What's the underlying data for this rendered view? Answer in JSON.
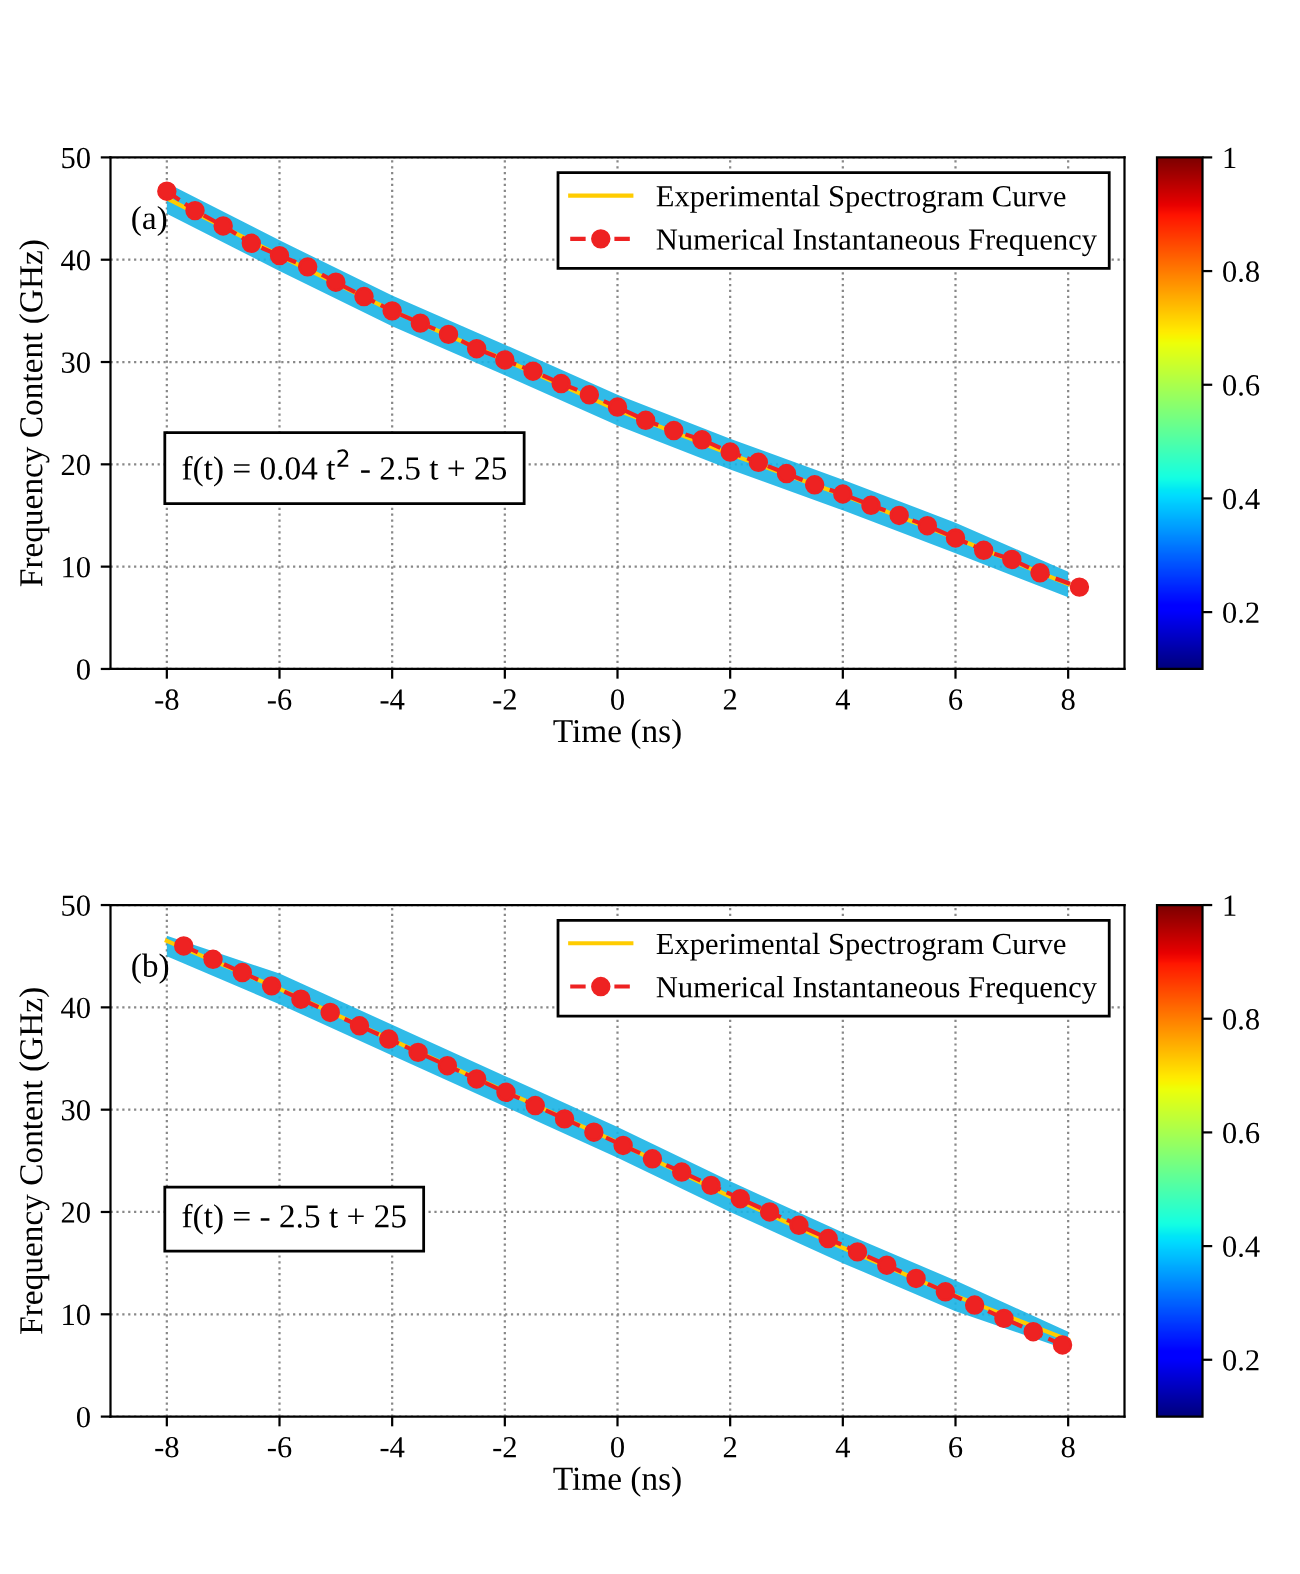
{
  "chart_data": [
    {
      "type": "line",
      "xlabel": "Time (ns)",
      "ylabel": "Frequency Content (GHz)",
      "xlim": [
        -9,
        9
      ],
      "xticks": [
        -8,
        -6,
        -4,
        -2,
        0,
        2,
        4,
        6,
        8
      ],
      "ylim": [
        0,
        50
      ],
      "yticks": [
        0,
        10,
        20,
        30,
        40,
        50
      ],
      "grid": true,
      "legend": "top right",
      "clim": [
        0.1,
        1
      ],
      "cticks": [
        0.2,
        0.4,
        0.6,
        0.8,
        1
      ],
      "annotations": [
        "(a)",
        "f(t) = 0.04 t$^{2}$ - 2.5 t + 25"
      ],
      "series": [
        {
          "name": "Experimental Spectrogram Curve",
          "color": "#ffcc00",
          "x": [
            -8,
            -6,
            -4,
            -2,
            0,
            2,
            4,
            6,
            8
          ],
          "values": [
            46,
            40.4,
            35,
            30.2,
            25.3,
            21,
            17,
            12.8,
            8.3
          ],
          "lower": [
            44.5,
            38.9,
            33.5,
            28.7,
            23.8,
            19.5,
            15.5,
            11.3,
            7
          ],
          "upper": [
            47.5,
            41.9,
            36.5,
            31.7,
            26.8,
            22.5,
            18.5,
            14.3,
            9.5
          ]
        },
        {
          "name": "Numerical Instantaneous Frequency",
          "color": "#ee2222",
          "marker": "circle",
          "line_style": "dashed",
          "x": [
            -8,
            -7.5,
            -7,
            -6.5,
            -6,
            -5.5,
            -5,
            -4.5,
            -4,
            -3.5,
            -3,
            -2.5,
            -2,
            -1.5,
            -1,
            -0.5,
            0,
            0.5,
            1,
            1.5,
            2,
            2.5,
            3,
            3.5,
            4,
            4.5,
            5,
            5.5,
            6,
            6.5,
            7,
            7.5,
            8.2
          ],
          "values": [
            46.7,
            44.8,
            43.3,
            41.6,
            40.4,
            39.3,
            37.8,
            36.4,
            35,
            33.8,
            32.7,
            31.3,
            30.2,
            29.1,
            27.9,
            26.8,
            25.6,
            24.3,
            23.3,
            22.4,
            21.2,
            20.2,
            19.1,
            18,
            17.1,
            16,
            15,
            14,
            12.8,
            11.6,
            10.7,
            9.4,
            8
          ]
        }
      ]
    },
    {
      "type": "line",
      "xlabel": "Time (ns)",
      "ylabel": "Frequency Content (GHz)",
      "xlim": [
        -9,
        9
      ],
      "xticks": [
        -8,
        -6,
        -4,
        -2,
        0,
        2,
        4,
        6,
        8
      ],
      "ylim": [
        0,
        50
      ],
      "yticks": [
        0,
        10,
        20,
        30,
        40,
        50
      ],
      "grid": true,
      "legend": "top right",
      "clim": [
        0.1,
        1
      ],
      "cticks": [
        0.2,
        0.4,
        0.6,
        0.8,
        1
      ],
      "annotations": [
        "(b)",
        "f(t) = - 2.5 t + 25"
      ],
      "series": [
        {
          "name": "Experimental Spectrogram Curve",
          "color": "#ffcc00",
          "x": [
            -8,
            -6,
            -4,
            -2,
            0,
            2,
            4,
            6,
            8
          ],
          "values": [
            46.5,
            41.8,
            36.8,
            31.8,
            26.8,
            21.5,
            16.5,
            11.8,
            7.5
          ],
          "lower": [
            45,
            40.3,
            35.3,
            30.3,
            25.3,
            20,
            15,
            10.3,
            6.5
          ],
          "upper": [
            47,
            43.3,
            38.3,
            33.3,
            28.3,
            23,
            18,
            13.3,
            8.3
          ]
        },
        {
          "name": "Numerical Instantaneous Frequency",
          "color": "#ee2222",
          "marker": "circle",
          "line_style": "dashed",
          "x": [
            -7.7,
            -7.18,
            -6.66,
            -6.14,
            -5.62,
            -5.1,
            -4.58,
            -4.06,
            -3.54,
            -3.02,
            -2.5,
            -1.98,
            -1.46,
            -0.94,
            -0.42,
            0.1,
            0.62,
            1.14,
            1.66,
            2.18,
            2.7,
            3.22,
            3.74,
            4.26,
            4.78,
            5.3,
            5.82,
            6.34,
            6.86,
            7.38,
            7.9
          ],
          "values": [
            46,
            44.7,
            43.4,
            42.1,
            40.8,
            39.5,
            38.2,
            36.9,
            35.6,
            34.3,
            33,
            31.7,
            30.4,
            29.1,
            27.8,
            26.5,
            25.2,
            23.9,
            22.6,
            21.3,
            20,
            18.7,
            17.4,
            16.1,
            14.8,
            13.5,
            12.2,
            10.9,
            9.6,
            8.3,
            7
          ]
        }
      ]
    }
  ]
}
